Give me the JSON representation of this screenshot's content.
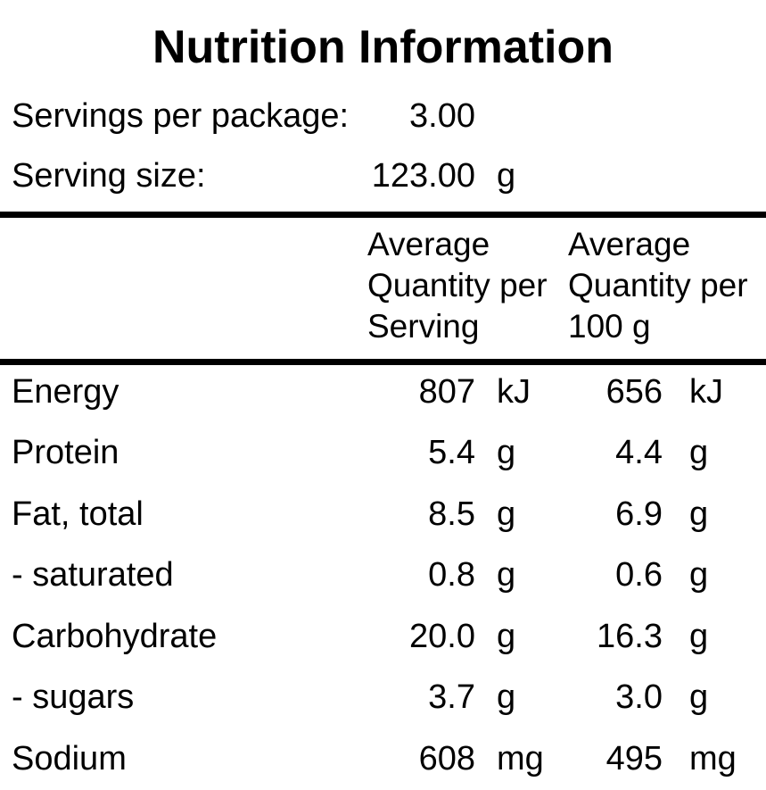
{
  "title": "Nutrition Information",
  "colors": {
    "text": "#000000",
    "background": "#ffffff",
    "rule": "#000000"
  },
  "package_info": {
    "rows": [
      {
        "label": "Servings per package:",
        "value": "3.00",
        "unit": ""
      },
      {
        "label": "Serving size:",
        "value": "123.00",
        "unit": "g"
      }
    ]
  },
  "table": {
    "header": {
      "per_serving_lines": [
        "Average",
        "Quantity per",
        "Serving"
      ],
      "per_100g_lines": [
        "Average",
        "Quantity per",
        "100 g"
      ]
    },
    "rows": [
      {
        "label": "Energy",
        "per_serving": "807",
        "per_serving_unit": "kJ",
        "per_100g": "656",
        "per_100g_unit": "kJ"
      },
      {
        "label": "Protein",
        "per_serving": "5.4",
        "per_serving_unit": "g",
        "per_100g": "4.4",
        "per_100g_unit": "g"
      },
      {
        "label": "Fat, total",
        "per_serving": "8.5",
        "per_serving_unit": "g",
        "per_100g": "6.9",
        "per_100g_unit": "g"
      },
      {
        "label": "- saturated",
        "per_serving": "0.8",
        "per_serving_unit": "g",
        "per_100g": "0.6",
        "per_100g_unit": "g"
      },
      {
        "label": "Carbohydrate",
        "per_serving": "20.0",
        "per_serving_unit": "g",
        "per_100g": "16.3",
        "per_100g_unit": "g"
      },
      {
        "label": "- sugars",
        "per_serving": "3.7",
        "per_serving_unit": "g",
        "per_100g": "3.0",
        "per_100g_unit": "g"
      },
      {
        "label": "Sodium",
        "per_serving": "608",
        "per_serving_unit": "mg",
        "per_100g": "495",
        "per_100g_unit": "mg"
      }
    ]
  }
}
